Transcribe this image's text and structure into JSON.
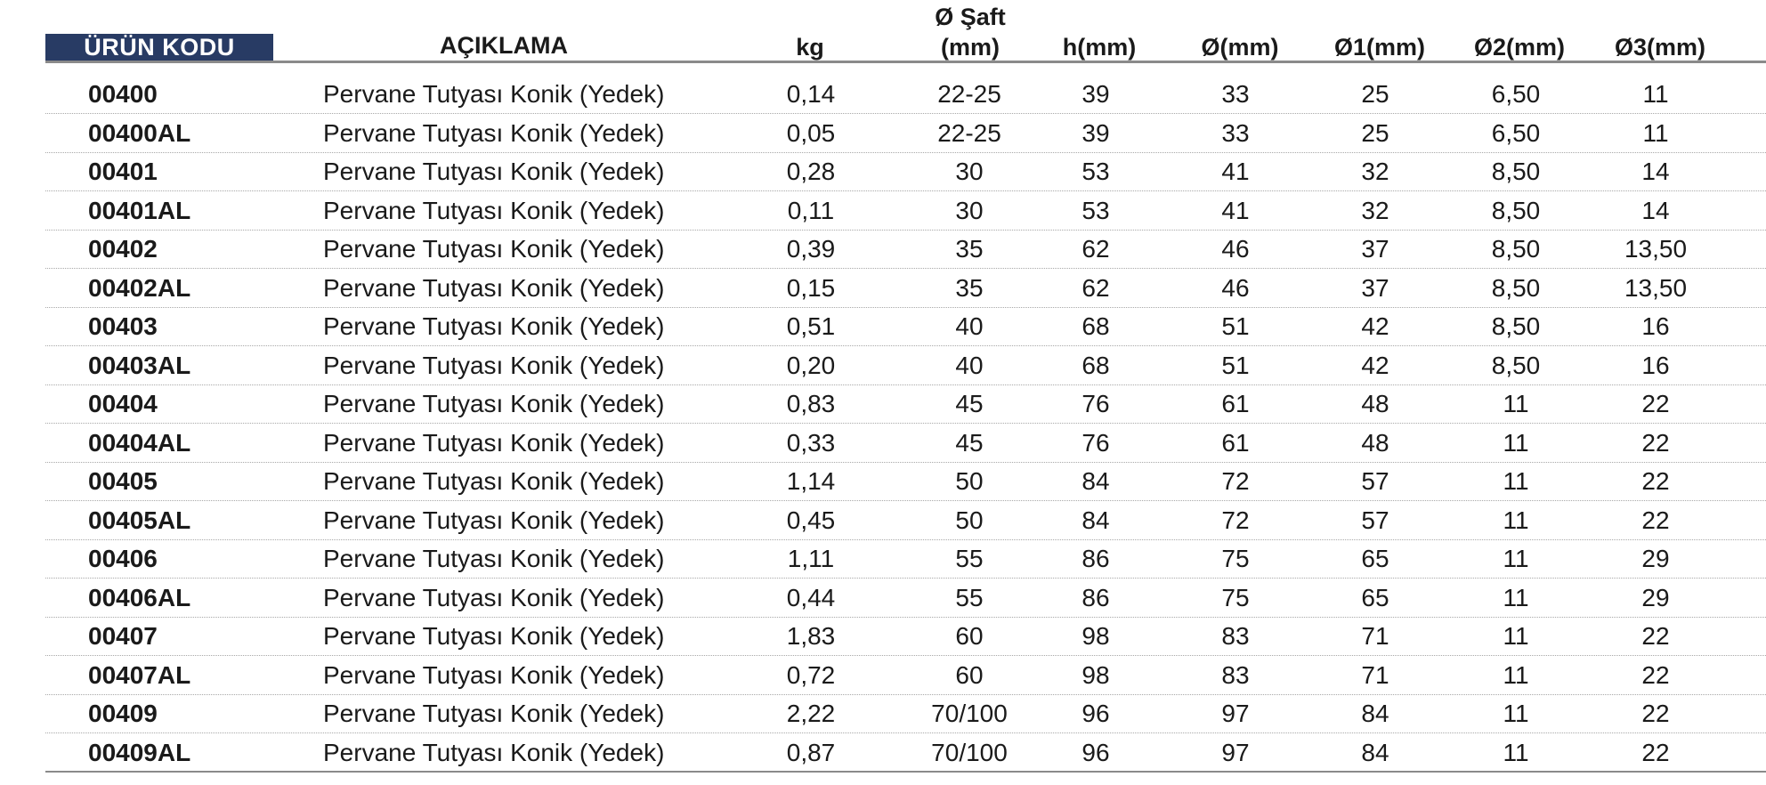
{
  "header": {
    "code": "ÜRÜN KODU",
    "description": "AÇIKLAMA",
    "kg": "kg",
    "shaft_line1": "Ø Şaft",
    "shaft_line2": "(mm)",
    "h": "h(mm)",
    "d": "Ø(mm)",
    "d1": "Ø1(mm)",
    "d2": "Ø2(mm)",
    "d3": "Ø3(mm)"
  },
  "colors": {
    "badge_bg": "#283b64",
    "badge_text": "#ffffff",
    "rule": "#8a8a8a"
  },
  "rows": [
    {
      "code": "00400",
      "desc": "Pervane Tutyası Konik (Yedek)",
      "kg": "0,14",
      "shaft": "22-25",
      "h": "39",
      "d": "33",
      "d1": "25",
      "d2": "6,50",
      "d3": "11"
    },
    {
      "code": "00400AL",
      "desc": "Pervane Tutyası Konik (Yedek)",
      "kg": "0,05",
      "shaft": "22-25",
      "h": "39",
      "d": "33",
      "d1": "25",
      "d2": "6,50",
      "d3": "11"
    },
    {
      "code": "00401",
      "desc": "Pervane Tutyası Konik (Yedek)",
      "kg": "0,28",
      "shaft": "30",
      "h": "53",
      "d": "41",
      "d1": "32",
      "d2": "8,50",
      "d3": "14"
    },
    {
      "code": "00401AL",
      "desc": "Pervane Tutyası Konik (Yedek)",
      "kg": "0,11",
      "shaft": "30",
      "h": "53",
      "d": "41",
      "d1": "32",
      "d2": "8,50",
      "d3": "14"
    },
    {
      "code": "00402",
      "desc": "Pervane Tutyası Konik (Yedek)",
      "kg": "0,39",
      "shaft": "35",
      "h": "62",
      "d": "46",
      "d1": "37",
      "d2": "8,50",
      "d3": "13,50"
    },
    {
      "code": "00402AL",
      "desc": "Pervane Tutyası Konik (Yedek)",
      "kg": "0,15",
      "shaft": "35",
      "h": "62",
      "d": "46",
      "d1": "37",
      "d2": "8,50",
      "d3": "13,50"
    },
    {
      "code": "00403",
      "desc": "Pervane Tutyası Konik (Yedek)",
      "kg": "0,51",
      "shaft": "40",
      "h": "68",
      "d": "51",
      "d1": "42",
      "d2": "8,50",
      "d3": "16"
    },
    {
      "code": "00403AL",
      "desc": "Pervane Tutyası Konik (Yedek)",
      "kg": "0,20",
      "shaft": "40",
      "h": "68",
      "d": "51",
      "d1": "42",
      "d2": "8,50",
      "d3": "16"
    },
    {
      "code": "00404",
      "desc": "Pervane Tutyası Konik (Yedek)",
      "kg": "0,83",
      "shaft": "45",
      "h": "76",
      "d": "61",
      "d1": "48",
      "d2": "11",
      "d3": "22"
    },
    {
      "code": "00404AL",
      "desc": "Pervane Tutyası Konik (Yedek)",
      "kg": "0,33",
      "shaft": "45",
      "h": "76",
      "d": "61",
      "d1": "48",
      "d2": "11",
      "d3": "22"
    },
    {
      "code": "00405",
      "desc": "Pervane Tutyası Konik (Yedek)",
      "kg": "1,14",
      "shaft": "50",
      "h": "84",
      "d": "72",
      "d1": "57",
      "d2": "11",
      "d3": "22"
    },
    {
      "code": "00405AL",
      "desc": "Pervane Tutyası Konik (Yedek)",
      "kg": "0,45",
      "shaft": "50",
      "h": "84",
      "d": "72",
      "d1": "57",
      "d2": "11",
      "d3": "22"
    },
    {
      "code": "00406",
      "desc": "Pervane Tutyası Konik (Yedek)",
      "kg": "1,11",
      "shaft": "55",
      "h": "86",
      "d": "75",
      "d1": "65",
      "d2": "11",
      "d3": "29"
    },
    {
      "code": "00406AL",
      "desc": "Pervane Tutyası Konik (Yedek)",
      "kg": "0,44",
      "shaft": "55",
      "h": "86",
      "d": "75",
      "d1": "65",
      "d2": "11",
      "d3": "29"
    },
    {
      "code": "00407",
      "desc": "Pervane Tutyası Konik (Yedek)",
      "kg": "1,83",
      "shaft": "60",
      "h": "98",
      "d": "83",
      "d1": "71",
      "d2": "11",
      "d3": "22"
    },
    {
      "code": "00407AL",
      "desc": "Pervane Tutyası Konik (Yedek)",
      "kg": "0,72",
      "shaft": "60",
      "h": "98",
      "d": "83",
      "d1": "71",
      "d2": "11",
      "d3": "22"
    },
    {
      "code": "00409",
      "desc": "Pervane Tutyası Konik (Yedek)",
      "kg": "2,22",
      "shaft": "70/100",
      "h": "96",
      "d": "97",
      "d1": "84",
      "d2": "11",
      "d3": "22"
    },
    {
      "code": "00409AL",
      "desc": "Pervane Tutyası Konik (Yedek)",
      "kg": "0,87",
      "shaft": "70/100",
      "h": "96",
      "d": "97",
      "d1": "84",
      "d2": "11",
      "d3": "22"
    }
  ]
}
